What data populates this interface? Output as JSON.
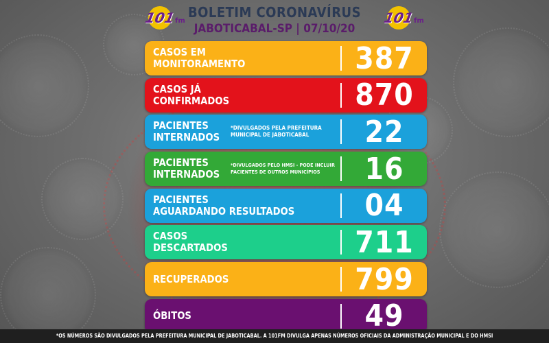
{
  "header": {
    "title": "BOLETIM CORONAVÍRUS",
    "subtitle": "JABOTICABAL-SP | 07/10/20",
    "logo_text": "101",
    "logo_suffix": "fm"
  },
  "colors": {
    "yellow": "#fbb117",
    "red": "#e3121b",
    "blue": "#1ba1db",
    "green": "#33a937",
    "teal": "#1dcf8b",
    "purple": "#6a1070"
  },
  "rows": [
    {
      "label_1": "CASOS EM",
      "label_2": "MONITORAMENTO",
      "note_1": "",
      "note_2": "",
      "value": "387",
      "color": "#fbb117"
    },
    {
      "label_1": "CASOS JÁ",
      "label_2": "CONFIRMADOS",
      "note_1": "",
      "note_2": "",
      "value": "870",
      "color": "#e3121b"
    },
    {
      "label_1": "PACIENTES",
      "label_2": "INTERNADOS",
      "note_1": "*DIVULGADOS PELA PREFEITURA",
      "note_2": "MUNICIPAL DE JABOTICABAL",
      "value": "22",
      "color": "#1ba1db"
    },
    {
      "label_1": "PACIENTES",
      "label_2": "INTERNADOS",
      "note_1": "*DIVULGADOS PELO HMSI - PODE INCLUIR",
      "note_2": "PACIENTES DE OUTROS MUNICÍPIOS",
      "value": "16",
      "color": "#33a937"
    },
    {
      "label_1": "PACIENTES",
      "label_2": "AGUARDANDO RESULTADOS",
      "note_1": "",
      "note_2": "",
      "value": "04",
      "color": "#1ba1db"
    },
    {
      "label_1": "CASOS",
      "label_2": "DESCARTADOS",
      "note_1": "",
      "note_2": "",
      "value": "711",
      "color": "#1dcf8b"
    },
    {
      "label_1": "RECUPERADOS",
      "label_2": "",
      "note_1": "",
      "note_2": "",
      "value": "799",
      "color": "#fbb117"
    },
    {
      "label_1": "ÓBITOS",
      "label_2": "",
      "note_1": "",
      "note_2": "",
      "value": "49",
      "color": "#6a1070"
    }
  ],
  "footer": {
    "text": "*OS NÚMEROS SÃO DIVULGADOS PELA PREFEITURA MUNICIPAL DE JABOTICABAL. A 101FM DIVULGA APENAS NÚMEROS OFICIAIS DA ADMINISTRAÇÃO MUNICIPAL E DO HMSI"
  }
}
